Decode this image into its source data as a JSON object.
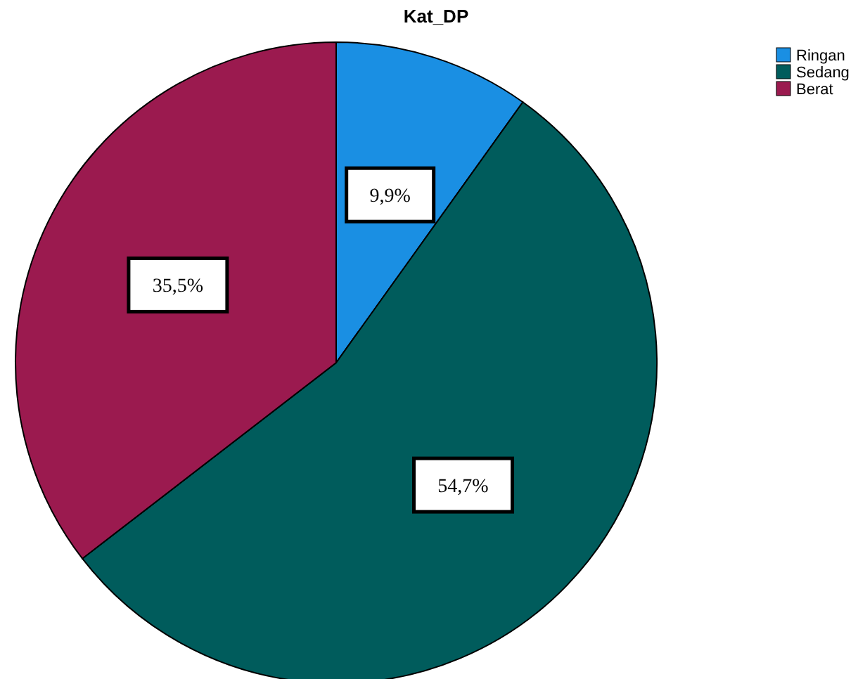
{
  "chart_data": {
    "type": "pie",
    "title": "Kat_DP",
    "categories": [
      "Ringan",
      "Sedang",
      "Berat"
    ],
    "values": [
      9.9,
      54.7,
      35.5
    ],
    "colors": [
      "#1a8fe3",
      "#005c5c",
      "#9b1a4f"
    ],
    "value_labels": [
      "9,9%",
      "54,7%",
      "35,5%"
    ],
    "legend": "top right"
  }
}
